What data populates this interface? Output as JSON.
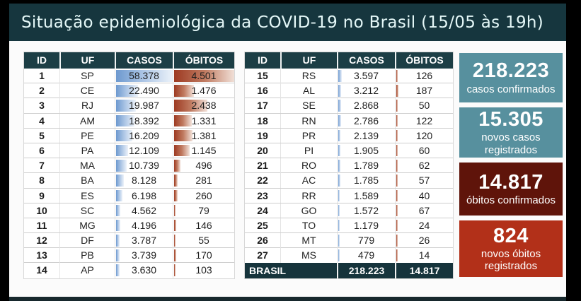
{
  "title": "Situação epidemiológica da COVID-19 no Brasil (15/05 às 19h)",
  "chart_data": {
    "type": "table",
    "title": "Situação epidemiológica da COVID-19 no Brasil (15/05 às 19h)",
    "columns": [
      "ID",
      "UF",
      "CASOS",
      "ÓBITOS"
    ],
    "left_table": {
      "rows": [
        [
          "1",
          "SP",
          "58.378",
          "4.501"
        ],
        [
          "2",
          "CE",
          "22.490",
          "1.476"
        ],
        [
          "3",
          "RJ",
          "19.987",
          "2.438"
        ],
        [
          "4",
          "AM",
          "18.392",
          "1.331"
        ],
        [
          "5",
          "PE",
          "16.209",
          "1.381"
        ],
        [
          "6",
          "PA",
          "12.109",
          "1.145"
        ],
        [
          "7",
          "MA",
          "10.739",
          "496"
        ],
        [
          "8",
          "BA",
          "8.128",
          "281"
        ],
        [
          "9",
          "ES",
          "6.198",
          "260"
        ],
        [
          "10",
          "SC",
          "4.562",
          "79"
        ],
        [
          "11",
          "MG",
          "4.196",
          "146"
        ],
        [
          "12",
          "DF",
          "3.787",
          "55"
        ],
        [
          "13",
          "PB",
          "3.739",
          "170"
        ],
        [
          "14",
          "AP",
          "3.630",
          "103"
        ]
      ]
    },
    "right_table": {
      "rows": [
        [
          "15",
          "RS",
          "3.597",
          "126"
        ],
        [
          "16",
          "AL",
          "3.212",
          "187"
        ],
        [
          "17",
          "SE",
          "2.868",
          "50"
        ],
        [
          "18",
          "RN",
          "2.786",
          "122"
        ],
        [
          "19",
          "PR",
          "2.139",
          "120"
        ],
        [
          "20",
          "PI",
          "1.905",
          "60"
        ],
        [
          "21",
          "RO",
          "1.789",
          "62"
        ],
        [
          "22",
          "AC",
          "1.785",
          "57"
        ],
        [
          "23",
          "RR",
          "1.589",
          "40"
        ],
        [
          "24",
          "GO",
          "1.572",
          "67"
        ],
        [
          "25",
          "TO",
          "1.179",
          "24"
        ],
        [
          "26",
          "MT",
          "779",
          "26"
        ],
        [
          "27",
          "MS",
          "479",
          "14"
        ]
      ]
    },
    "total_row": {
      "label": "BRASIL",
      "casos": "218.223",
      "obitos": "14.817"
    },
    "bar_types": {
      "casos": "blue-data-bar",
      "obitos": "red-data-bar"
    }
  },
  "summary_cards": [
    {
      "value": "218.223",
      "label": "casos confirmados",
      "type": "teal"
    },
    {
      "value": "15.305",
      "label": "novos casos registrados",
      "type": "teal"
    },
    {
      "value": "14.817",
      "label": "óbitos confirmados",
      "type": "maroon"
    },
    {
      "value": "824",
      "label": "novos óbitos registrados",
      "type": "red"
    }
  ],
  "colors": {
    "title_bar": "#16363e",
    "table_header": "#1c3e45",
    "total_row": "#16343c",
    "footer_bar": "#17282d",
    "casos_bar_start": "#6d99cf",
    "casos_bar_end": "#edf3fa",
    "obitos_bar_start": "#9d3a22",
    "obitos_bar_end": "#f2e2da",
    "card_teal": "#57909e",
    "card_maroon": "#5f140a",
    "card_red": "#b23019"
  }
}
